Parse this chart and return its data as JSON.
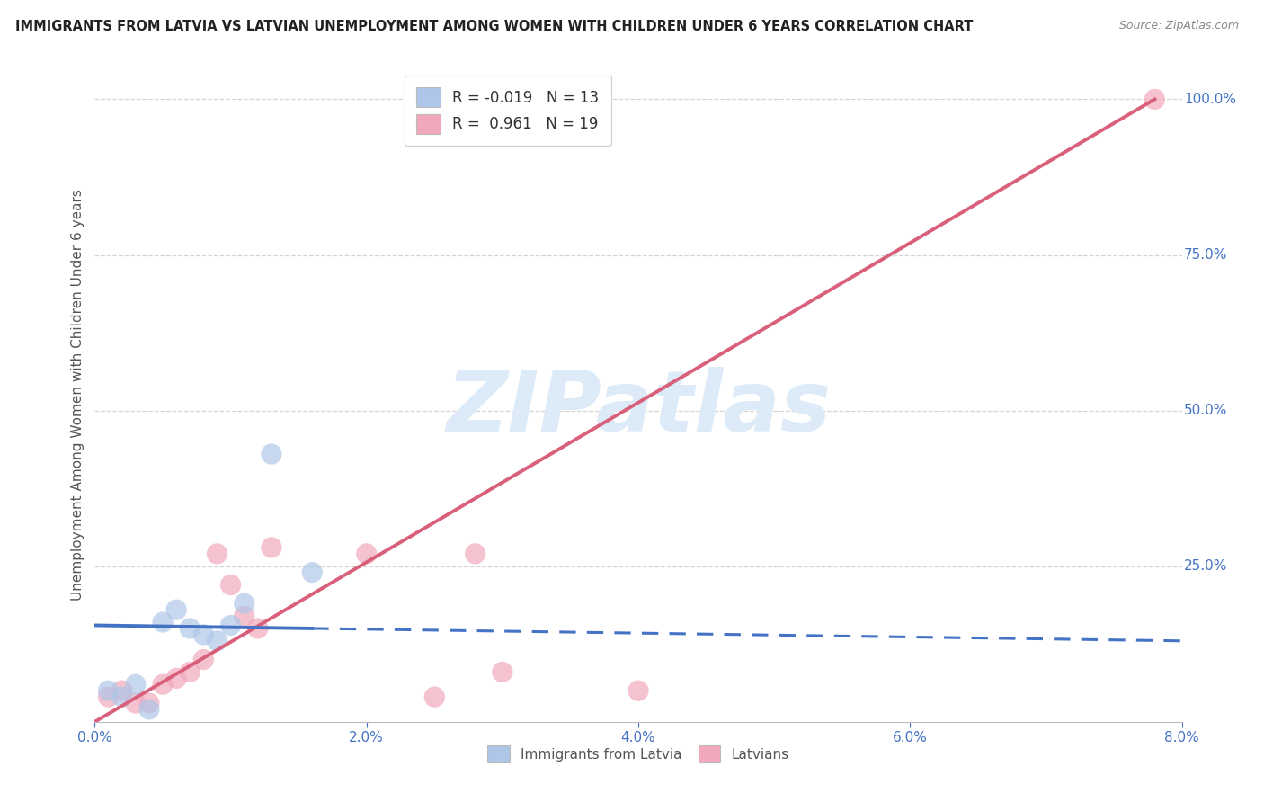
{
  "title": "IMMIGRANTS FROM LATVIA VS LATVIAN UNEMPLOYMENT AMONG WOMEN WITH CHILDREN UNDER 6 YEARS CORRELATION CHART",
  "source": "Source: ZipAtlas.com",
  "ylabel": "Unemployment Among Women with Children Under 6 years",
  "xlim": [
    0.0,
    0.08
  ],
  "ylim": [
    0.0,
    1.05
  ],
  "xticks": [
    0.0,
    0.02,
    0.04,
    0.06,
    0.08
  ],
  "xticklabels": [
    "0.0%",
    "2.0%",
    "4.0%",
    "6.0%",
    "8.0%"
  ],
  "yticks_right": [
    0.25,
    0.5,
    0.75,
    1.0
  ],
  "yticklabels_right": [
    "25.0%",
    "50.0%",
    "75.0%",
    "100.0%"
  ],
  "blue_label": "Immigrants from Latvia",
  "pink_label": "Latvians",
  "blue_legend": "R = -0.019   N = 13",
  "pink_legend": "R =  0.961   N = 19",
  "blue_color": "#aec6e8",
  "pink_color": "#f2a8bc",
  "blue_line_color": "#4472c4",
  "pink_line_color": "#d9607a",
  "watermark": "ZIPatlas",
  "watermark_color": "#ddeaf8",
  "background_color": "#ffffff",
  "grid_color": "#d0d0d0",
  "blue_scatter_x": [
    0.001,
    0.002,
    0.003,
    0.004,
    0.005,
    0.006,
    0.007,
    0.008,
    0.009,
    0.01,
    0.011,
    0.013,
    0.016
  ],
  "blue_scatter_y": [
    0.05,
    0.04,
    0.06,
    0.02,
    0.16,
    0.18,
    0.15,
    0.14,
    0.13,
    0.155,
    0.19,
    0.43,
    0.24
  ],
  "pink_scatter_x": [
    0.001,
    0.002,
    0.003,
    0.004,
    0.005,
    0.006,
    0.007,
    0.008,
    0.009,
    0.01,
    0.011,
    0.012,
    0.013,
    0.02,
    0.025,
    0.028,
    0.03,
    0.04,
    0.078
  ],
  "pink_scatter_y": [
    0.04,
    0.05,
    0.03,
    0.03,
    0.06,
    0.07,
    0.08,
    0.1,
    0.27,
    0.22,
    0.17,
    0.15,
    0.28,
    0.27,
    0.04,
    0.27,
    0.08,
    0.05,
    1.0
  ],
  "blue_trend_x0": 0.0,
  "blue_trend_x1": 0.08,
  "blue_trend_y0": 0.155,
  "blue_trend_y1": 0.13,
  "blue_trend_solid_end_x": 0.016,
  "pink_trend_x0": 0.0,
  "pink_trend_x1": 0.078,
  "pink_trend_y0": 0.0,
  "pink_trend_y1": 1.0,
  "axis_label_color": "#4472c4",
  "ylabel_color": "#555555",
  "title_color": "#222222",
  "source_color": "#888888",
  "title_fontsize": 10.5,
  "source_fontsize": 9,
  "tick_fontsize": 11,
  "ylabel_fontsize": 11,
  "legend_fontsize": 12,
  "scatter_size": 280,
  "scatter_alpha": 0.7
}
